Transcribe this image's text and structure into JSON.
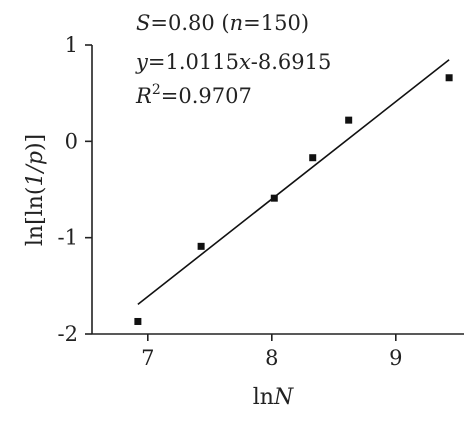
{
  "chart_data": {
    "type": "scatter",
    "xlabel_base": "ln",
    "xlabel_var": "N",
    "ylabel_prefix": "ln[ln(",
    "ylabel_italic": "1/p",
    "ylabel_suffix": ")]",
    "xlim": [
      6.55,
      9.55
    ],
    "ylim": [
      -2,
      1
    ],
    "xticks": [
      7,
      8,
      9
    ],
    "yticks": [
      -2,
      -1,
      0,
      1
    ],
    "grid": false,
    "points": [
      {
        "x": 6.92,
        "y": -1.87
      },
      {
        "x": 7.43,
        "y": -1.09
      },
      {
        "x": 8.02,
        "y": -0.59
      },
      {
        "x": 8.33,
        "y": -0.17
      },
      {
        "x": 8.62,
        "y": 0.22
      },
      {
        "x": 9.43,
        "y": 0.66
      }
    ],
    "fit": {
      "slope": 1.0115,
      "intercept": -8.6915,
      "x_start": 6.92,
      "x_end": 9.43
    },
    "annotations": {
      "s_var": "S",
      "s_val": "=0.80 (",
      "n_var": "n",
      "n_val": "=150)",
      "eq_y": "y",
      "eq_mid": "=1.0115",
      "eq_x": "x",
      "eq_end": "-8.6915",
      "r_var": "R",
      "r_sup": "2",
      "r_val": "=0.9707"
    }
  }
}
